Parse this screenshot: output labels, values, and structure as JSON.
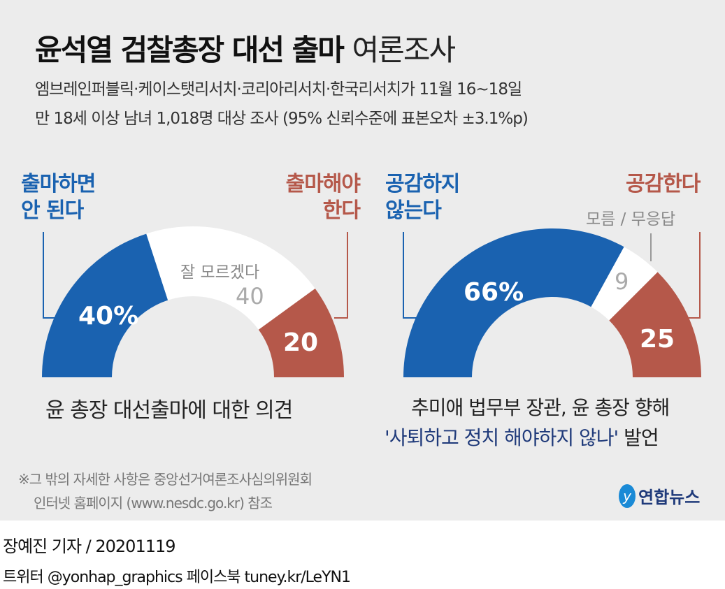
{
  "title_bold": "윤석열 검찰총장 대선 출마",
  "title_light": "여론조사",
  "subtitle_1": "엠브레인퍼블릭·케이스탯리서치·코리아리서치·한국리서치가 11월 16~18일",
  "subtitle_2": "만 18세 이상 남녀 1,018명 대상 조사 (95% 신뢰수준에 표본오차 ±3.1%p)",
  "colors": {
    "blue": "#1a62b0",
    "red": "#b5584a",
    "white": "#ffffff",
    "background": "#ececec"
  },
  "chart_data": [
    {
      "type": "pie",
      "shape": "half-donut",
      "caption": "윤 총장 대선출마에 대한 의견",
      "slices": [
        {
          "label": "출마하면 안 된다",
          "value": 40,
          "display": "40%",
          "color": "#1a62b0"
        },
        {
          "label": "잘 모르겠다",
          "value": 40,
          "display": "40",
          "color": "#ffffff"
        },
        {
          "label": "출마해야 한다",
          "value": 20,
          "display": "20",
          "color": "#b5584a"
        }
      ]
    },
    {
      "type": "pie",
      "shape": "half-donut",
      "caption_1": "추미애 법무부 장관, 윤 총장 향해",
      "caption_2": "'사퇴하고 정치 해야하지 않나'",
      "caption_3": "발언",
      "slices": [
        {
          "label": "공감하지 않는다",
          "value": 66,
          "display": "66%",
          "color": "#1a62b0"
        },
        {
          "label": "모름 / 무응답",
          "value": 9,
          "display": "9",
          "color": "#ffffff"
        },
        {
          "label": "공감한다",
          "value": 25,
          "display": "25",
          "color": "#b5584a"
        }
      ]
    }
  ],
  "left_labels": {
    "no_1": "출마하면",
    "no_2": "안 된다",
    "yes_1": "출마해야",
    "yes_2": "한다"
  },
  "right_labels": {
    "no_1": "공감하지",
    "no_2": "않는다"
  },
  "note_1": "※그 밖의 자세한 사항은 중앙선거여론조사심의위원회",
  "note_2": "인터넷 홈페이지 (www.nesdc.go.kr) 참조",
  "logo": "연합뉴스",
  "byline": "장예진 기자 / 20201119",
  "social": "트위터 @yonhap_graphics  페이스북 tuney.kr/LeYN1"
}
